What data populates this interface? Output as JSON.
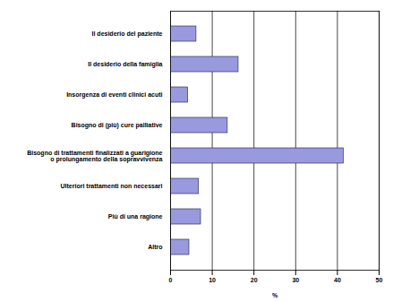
{
  "chart_data": {
    "type": "bar",
    "orientation": "horizontal",
    "categories": [
      "Il desiderio del paziente",
      "Il desiderio della famiglia",
      "Insorgenza di eventi clinici acuti",
      "Bisogno di (più) cure palliative",
      "Bisogno di trattamenti finalizzati a guarigione\no prolungamento della sopravvivenza",
      "Ulteriori trattamenti non necessari",
      "Più di una ragione",
      "Altro"
    ],
    "values": [
      6.2,
      16.3,
      4.2,
      13.7,
      41.5,
      6.8,
      7.3,
      4.5
    ],
    "color": "#9999dd",
    "x_label": "%",
    "xlim": [
      0,
      50
    ],
    "xticks": [
      0,
      10,
      20,
      30,
      40,
      50
    ],
    "grid": true
  }
}
